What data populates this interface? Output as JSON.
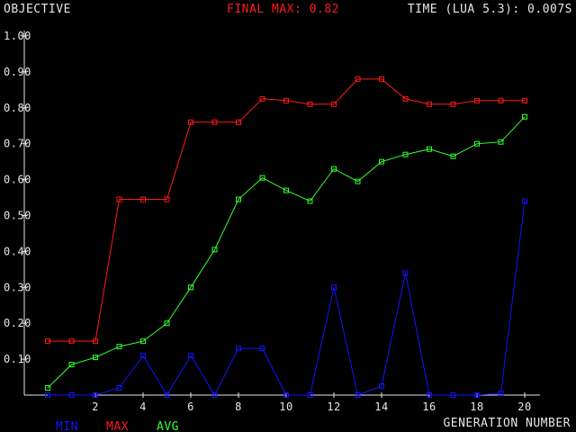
{
  "header": {
    "objective_label": "OBJECTIVE",
    "final_max_label": "FINAL MAX: 0.82",
    "time_label": "TIME (LUA 5.3): 0.007S"
  },
  "colors": {
    "background": "#000000",
    "axis": "#e6e6e6",
    "text": "#e6e6e6",
    "min": "#1414ff",
    "max": "#ff1a1a",
    "avg": "#33ff33"
  },
  "chart_data": {
    "type": "line",
    "xlabel": "GENERATION NUMBER",
    "ylabel": "OBJECTIVE",
    "xlim": [
      0,
      20
    ],
    "ylim": [
      0,
      1.0
    ],
    "x": [
      0,
      1,
      2,
      3,
      4,
      5,
      6,
      7,
      8,
      9,
      10,
      11,
      12,
      13,
      14,
      15,
      16,
      17,
      18,
      19,
      20
    ],
    "x_ticks": [
      2,
      4,
      6,
      8,
      10,
      12,
      14,
      16,
      18,
      20
    ],
    "x_tick_labels": [
      "2",
      "4",
      "6",
      "8",
      "10",
      "12",
      "14",
      "16",
      "18",
      "20"
    ],
    "y_ticks": [
      0.1,
      0.2,
      0.3,
      0.4,
      0.5,
      0.6,
      0.7,
      0.8,
      0.9,
      1.0
    ],
    "y_tick_labels": [
      "0.10",
      "0.20",
      "0.30",
      "0.40",
      "0.50",
      "0.60",
      "0.70",
      "0.80",
      "0.90",
      "1.00"
    ],
    "legend": [
      "MIN",
      "MAX",
      "AVG"
    ],
    "legend_position": "bottom-left",
    "grid": false,
    "series": [
      {
        "name": "MIN",
        "color_key": "min",
        "values": [
          0.0,
          0.0,
          0.0,
          0.02,
          0.11,
          0.0,
          0.11,
          0.0,
          0.13,
          0.13,
          0.0,
          0.0,
          0.3,
          0.0,
          0.025,
          0.34,
          0.0,
          0.0,
          0.0,
          0.005,
          0.54
        ]
      },
      {
        "name": "MAX",
        "color_key": "max",
        "values": [
          0.15,
          0.15,
          0.15,
          0.545,
          0.545,
          0.545,
          0.76,
          0.76,
          0.76,
          0.825,
          0.82,
          0.81,
          0.81,
          0.88,
          0.88,
          0.825,
          0.81,
          0.81,
          0.82,
          0.82,
          0.82
        ]
      },
      {
        "name": "AVG",
        "color_key": "avg",
        "values": [
          0.02,
          0.085,
          0.105,
          0.135,
          0.15,
          0.2,
          0.3,
          0.405,
          0.545,
          0.605,
          0.57,
          0.54,
          0.63,
          0.595,
          0.65,
          0.67,
          0.685,
          0.665,
          0.7,
          0.705,
          0.775
        ]
      }
    ]
  }
}
